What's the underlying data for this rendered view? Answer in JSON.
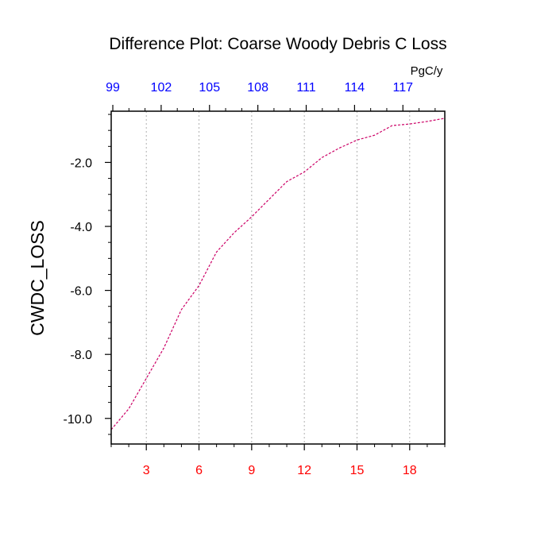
{
  "chart_data": {
    "type": "line",
    "title": "Difference Plot: Coarse Woody Debris C Loss",
    "ylabel": "CWDC_LOSS",
    "xlabel": "",
    "top_axis_units": "PgC/y",
    "xlim": [
      1,
      20
    ],
    "ylim": [
      -10.8,
      -0.4
    ],
    "x_ticks": [
      3,
      6,
      9,
      12,
      15,
      18
    ],
    "x_tick_labels": [
      "3",
      "6",
      "9",
      "12",
      "15",
      "18"
    ],
    "y_ticks": [
      -2,
      -4,
      -6,
      -8,
      -10
    ],
    "y_tick_labels": [
      "-2.0",
      "-4.0",
      "-6.0",
      "-8.0",
      "-10.0"
    ],
    "top_ticks": [
      99,
      102,
      105,
      108,
      111,
      114,
      117
    ],
    "top_tick_labels": [
      "99",
      "102",
      "105",
      "108",
      "111",
      "114",
      "117"
    ],
    "top_axis_range": [
      98.9,
      119.6
    ],
    "grid": "vertical dotted at x ticks",
    "bottom_tick_color": "#ff0000",
    "top_tick_color": "#0000ff",
    "series": [
      {
        "color": "#cc0066",
        "dash": "dashed",
        "x": [
          1,
          2,
          3,
          4,
          5,
          6,
          7,
          8,
          9,
          10,
          11,
          12,
          13,
          14,
          15,
          16,
          17,
          18,
          19,
          20
        ],
        "values": [
          -10.35,
          -9.7,
          -8.75,
          -7.8,
          -6.6,
          -5.85,
          -4.8,
          -4.2,
          -3.7,
          -3.15,
          -2.6,
          -2.3,
          -1.85,
          -1.55,
          -1.3,
          -1.15,
          -0.85,
          -0.8,
          -0.72,
          -0.62
        ]
      }
    ]
  }
}
